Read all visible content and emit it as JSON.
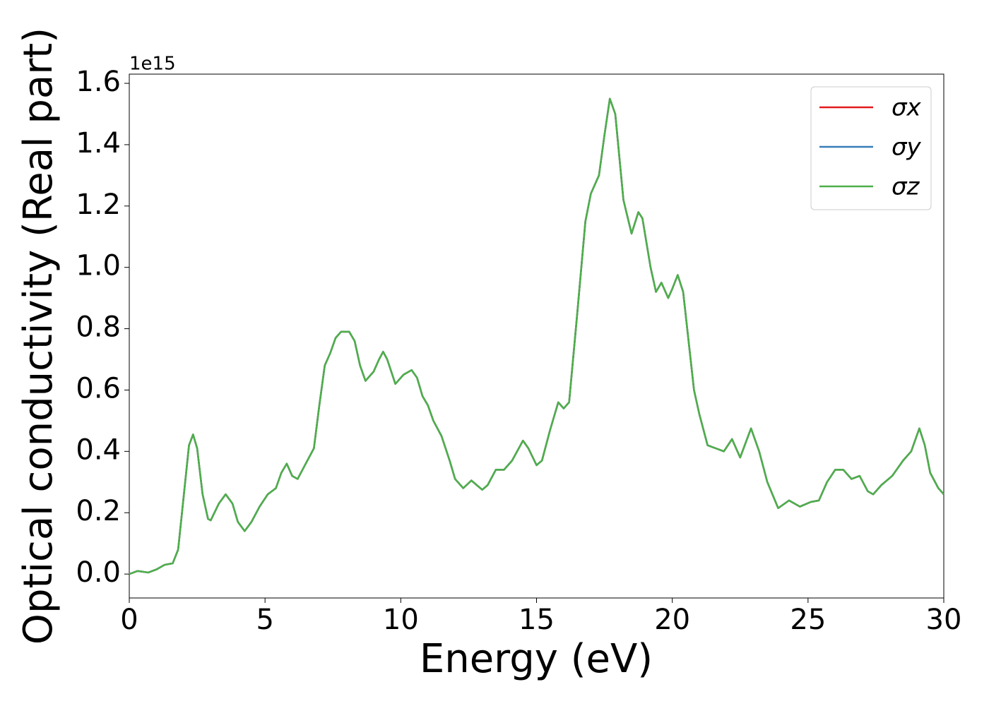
{
  "chart_data": {
    "type": "line",
    "xlabel": "Energy (eV)",
    "ylabel": "Optical conductivity (Real part)",
    "y_offset_label": "1e15",
    "xlim": [
      0,
      30
    ],
    "ylim": [
      -0.078,
      1.63
    ],
    "xticks": [
      0,
      5,
      10,
      15,
      20,
      25,
      30
    ],
    "yticks": [
      {
        "value": 0,
        "label": "0.0"
      },
      {
        "value": 0.2,
        "label": "0.2"
      },
      {
        "value": 0.4,
        "label": "0.4"
      },
      {
        "value": 0.6,
        "label": "0.6"
      },
      {
        "value": 0.8,
        "label": "0.8"
      },
      {
        "value": 1.0,
        "label": "1.0"
      },
      {
        "value": 1.2,
        "label": "1.2"
      },
      {
        "value": 1.4,
        "label": "1.4"
      },
      {
        "value": 1.6,
        "label": "1.6"
      }
    ],
    "legend": "upper right",
    "x": [
      0,
      0.3,
      0.7,
      1.0,
      1.3,
      1.6,
      1.8,
      2.0,
      2.2,
      2.35,
      2.5,
      2.7,
      2.9,
      3.0,
      3.3,
      3.55,
      3.8,
      4.0,
      4.25,
      4.5,
      4.8,
      5.1,
      5.4,
      5.6,
      5.8,
      6.0,
      6.2,
      6.5,
      6.8,
      7.0,
      7.2,
      7.4,
      7.6,
      7.8,
      8.1,
      8.3,
      8.5,
      8.7,
      9.0,
      9.2,
      9.35,
      9.5,
      9.8,
      10.1,
      10.4,
      10.6,
      10.8,
      11.0,
      11.2,
      11.5,
      11.8,
      12.0,
      12.3,
      12.6,
      13.0,
      13.2,
      13.5,
      13.8,
      14.1,
      14.5,
      14.7,
      15.0,
      15.2,
      15.5,
      15.8,
      16.0,
      16.2,
      16.5,
      16.8,
      17.0,
      17.3,
      17.5,
      17.7,
      17.9,
      18.2,
      18.5,
      18.75,
      18.9,
      19.2,
      19.4,
      19.6,
      19.85,
      20.0,
      20.2,
      20.4,
      20.6,
      20.8,
      21.0,
      21.3,
      21.6,
      21.9,
      22.2,
      22.5,
      22.9,
      23.2,
      23.5,
      23.9,
      24.3,
      24.7,
      25.1,
      25.4,
      25.7,
      26.0,
      26.3,
      26.6,
      26.9,
      27.2,
      27.4,
      27.7,
      28.1,
      28.5,
      28.8,
      29.1,
      29.3,
      29.5,
      29.8,
      30.0
    ],
    "series": [
      {
        "name": "σx",
        "color": "#e41a1c",
        "values": [
          0.0,
          0.01,
          0.005,
          0.015,
          0.03,
          0.035,
          0.08,
          0.25,
          0.42,
          0.455,
          0.41,
          0.26,
          0.18,
          0.175,
          0.23,
          0.26,
          0.23,
          0.17,
          0.14,
          0.17,
          0.22,
          0.26,
          0.28,
          0.33,
          0.36,
          0.32,
          0.31,
          0.36,
          0.41,
          0.55,
          0.68,
          0.72,
          0.77,
          0.79,
          0.79,
          0.76,
          0.68,
          0.63,
          0.66,
          0.7,
          0.725,
          0.7,
          0.62,
          0.65,
          0.665,
          0.64,
          0.58,
          0.55,
          0.5,
          0.45,
          0.37,
          0.31,
          0.28,
          0.305,
          0.275,
          0.29,
          0.34,
          0.34,
          0.37,
          0.435,
          0.41,
          0.355,
          0.37,
          0.47,
          0.56,
          0.54,
          0.56,
          0.85,
          1.15,
          1.24,
          1.3,
          1.43,
          1.55,
          1.5,
          1.22,
          1.11,
          1.18,
          1.16,
          1.0,
          0.92,
          0.95,
          0.9,
          0.93,
          0.975,
          0.92,
          0.76,
          0.6,
          0.52,
          0.42,
          0.41,
          0.4,
          0.44,
          0.38,
          0.475,
          0.4,
          0.3,
          0.215,
          0.24,
          0.22,
          0.235,
          0.24,
          0.3,
          0.34,
          0.34,
          0.31,
          0.32,
          0.27,
          0.26,
          0.29,
          0.32,
          0.37,
          0.4,
          0.475,
          0.42,
          0.33,
          0.28,
          0.26
        ]
      },
      {
        "name": "σy",
        "color": "#377eb8",
        "values": [
          0.0,
          0.01,
          0.005,
          0.015,
          0.03,
          0.035,
          0.08,
          0.25,
          0.42,
          0.455,
          0.41,
          0.26,
          0.18,
          0.175,
          0.23,
          0.26,
          0.23,
          0.17,
          0.14,
          0.17,
          0.22,
          0.26,
          0.28,
          0.33,
          0.36,
          0.32,
          0.31,
          0.36,
          0.41,
          0.55,
          0.68,
          0.72,
          0.77,
          0.79,
          0.79,
          0.76,
          0.68,
          0.63,
          0.66,
          0.7,
          0.725,
          0.7,
          0.62,
          0.65,
          0.665,
          0.64,
          0.58,
          0.55,
          0.5,
          0.45,
          0.37,
          0.31,
          0.28,
          0.305,
          0.275,
          0.29,
          0.34,
          0.34,
          0.37,
          0.435,
          0.41,
          0.355,
          0.37,
          0.47,
          0.56,
          0.54,
          0.56,
          0.85,
          1.15,
          1.24,
          1.3,
          1.43,
          1.55,
          1.5,
          1.22,
          1.11,
          1.18,
          1.16,
          1.0,
          0.92,
          0.95,
          0.9,
          0.93,
          0.975,
          0.92,
          0.76,
          0.6,
          0.52,
          0.42,
          0.41,
          0.4,
          0.44,
          0.38,
          0.475,
          0.4,
          0.3,
          0.215,
          0.24,
          0.22,
          0.235,
          0.24,
          0.3,
          0.34,
          0.34,
          0.31,
          0.32,
          0.27,
          0.26,
          0.29,
          0.32,
          0.37,
          0.4,
          0.475,
          0.42,
          0.33,
          0.28,
          0.26
        ]
      },
      {
        "name": "σz",
        "color": "#4daf4a",
        "values": [
          0.0,
          0.01,
          0.005,
          0.015,
          0.03,
          0.035,
          0.08,
          0.25,
          0.42,
          0.455,
          0.41,
          0.26,
          0.18,
          0.175,
          0.23,
          0.26,
          0.23,
          0.17,
          0.14,
          0.17,
          0.22,
          0.26,
          0.28,
          0.33,
          0.36,
          0.32,
          0.31,
          0.36,
          0.41,
          0.55,
          0.68,
          0.72,
          0.77,
          0.79,
          0.79,
          0.76,
          0.68,
          0.63,
          0.66,
          0.7,
          0.725,
          0.7,
          0.62,
          0.65,
          0.665,
          0.64,
          0.58,
          0.55,
          0.5,
          0.45,
          0.37,
          0.31,
          0.28,
          0.305,
          0.275,
          0.29,
          0.34,
          0.34,
          0.37,
          0.435,
          0.41,
          0.355,
          0.37,
          0.47,
          0.56,
          0.54,
          0.56,
          0.85,
          1.15,
          1.24,
          1.3,
          1.43,
          1.55,
          1.5,
          1.22,
          1.11,
          1.18,
          1.16,
          1.0,
          0.92,
          0.95,
          0.9,
          0.93,
          0.975,
          0.92,
          0.76,
          0.6,
          0.52,
          0.42,
          0.41,
          0.4,
          0.44,
          0.38,
          0.475,
          0.4,
          0.3,
          0.215,
          0.24,
          0.22,
          0.235,
          0.24,
          0.3,
          0.34,
          0.34,
          0.31,
          0.32,
          0.27,
          0.26,
          0.29,
          0.32,
          0.37,
          0.4,
          0.475,
          0.42,
          0.33,
          0.28,
          0.26
        ]
      }
    ]
  }
}
